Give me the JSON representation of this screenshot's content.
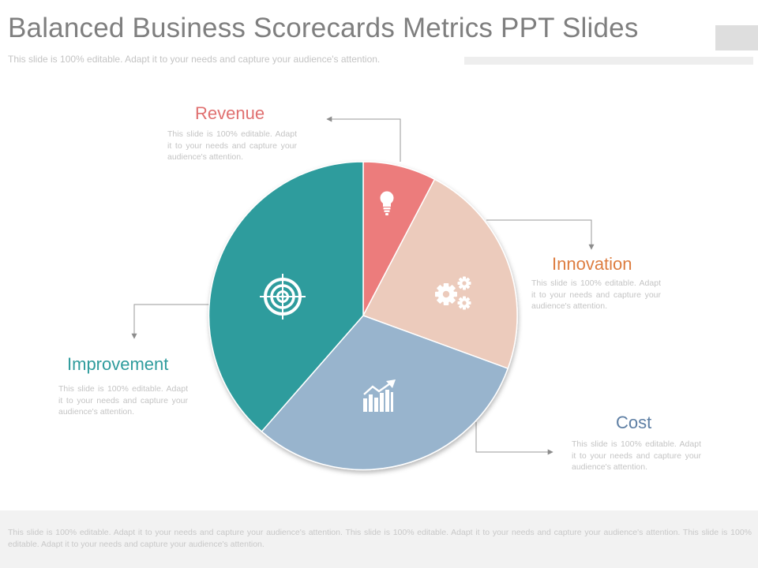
{
  "header": {
    "title": "Balanced Business Scorecards Metrics PPT Slides",
    "subtitle": "This slide is 100% editable. Adapt it to your needs and capture your audience's attention."
  },
  "segments": [
    {
      "key": "revenue",
      "label": "Revenue",
      "description": "This slide is 100% editable. Adapt it to your needs and capture your audience's attention.",
      "color": "#ec7b7b",
      "label_color": "#e07070",
      "icon": "lightbulb-icon"
    },
    {
      "key": "innovation",
      "label": "Innovation",
      "description": "This slide is 100% editable. Adapt it to your needs and capture your audience's attention.",
      "color": "#eccbbc",
      "label_color": "#dd7d40",
      "icon": "gears-icon"
    },
    {
      "key": "cost",
      "label": "Cost",
      "description": "This slide is 100% editable. Adapt it to your needs and capture your audience's attention.",
      "color": "#98b4cd",
      "label_color": "#5e7fa4",
      "icon": "bar-chart-growth-icon"
    },
    {
      "key": "improvement",
      "label": "Improvement",
      "description": "This slide is 100% editable. Adapt it to your needs and capture your audience's attention.",
      "color": "#2f9c9d",
      "label_color": "#2f9c9d",
      "icon": "target-icon"
    }
  ],
  "footer": {
    "text": "This slide is 100% editable. Adapt it to your needs and capture your audience's attention. This slide is 100% editable. Adapt it to your needs and capture your audience's attention. This slide is 100% editable. Adapt it to your needs and capture your audience's attention."
  }
}
